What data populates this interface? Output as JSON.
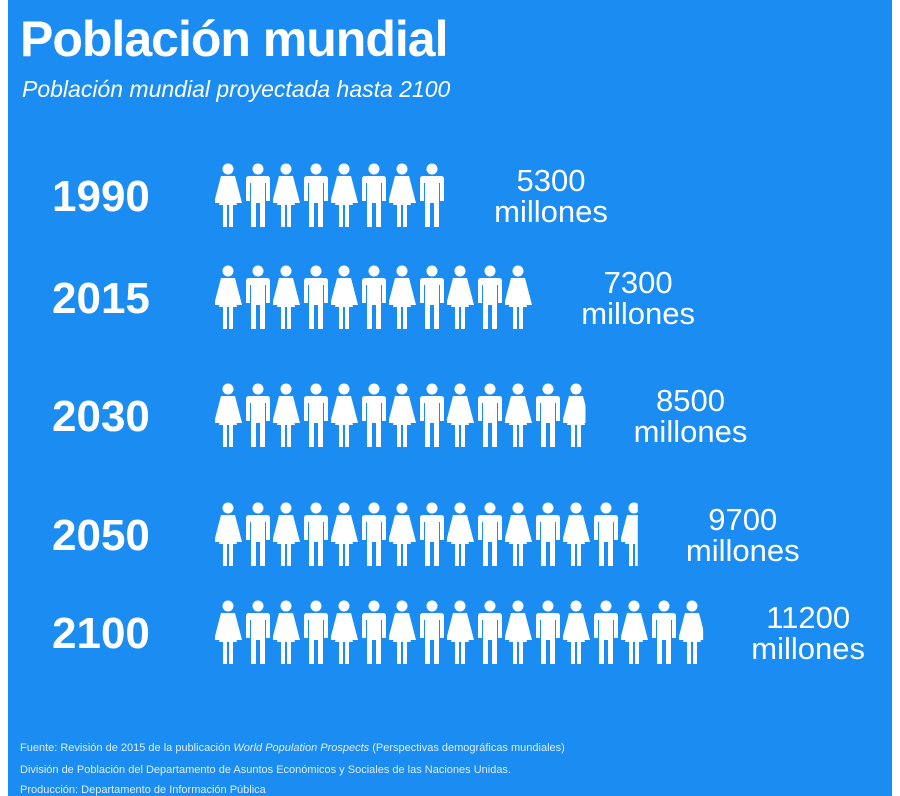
{
  "chart_data": {
    "type": "pictogram",
    "title": "Población mundial",
    "subtitle": "Población mundial proyectada hasta 2100",
    "categories": [
      "1990",
      "2015",
      "2030",
      "2050",
      "2100"
    ],
    "values": [
      5300,
      7300,
      8500,
      9700,
      11200
    ],
    "value_labels": [
      "5300 millones",
      "7300 millones",
      "8500 millones",
      "9700 millones",
      "11200 millones"
    ],
    "color": "#ffffff",
    "background": "#1a8cf2"
  },
  "footer": {
    "source_prefix": "Fuente: Revisión de 2015 de la publicación ",
    "source_title": "World Population Prospects",
    "source_suffix": " (Perspectivas demográficas mundiales)",
    "line2": "División de Población del Departamento de Asuntos Económicos y Sociales de las Naciones Unidas.",
    "line3": "Producción: Departamento de Información Pública"
  }
}
